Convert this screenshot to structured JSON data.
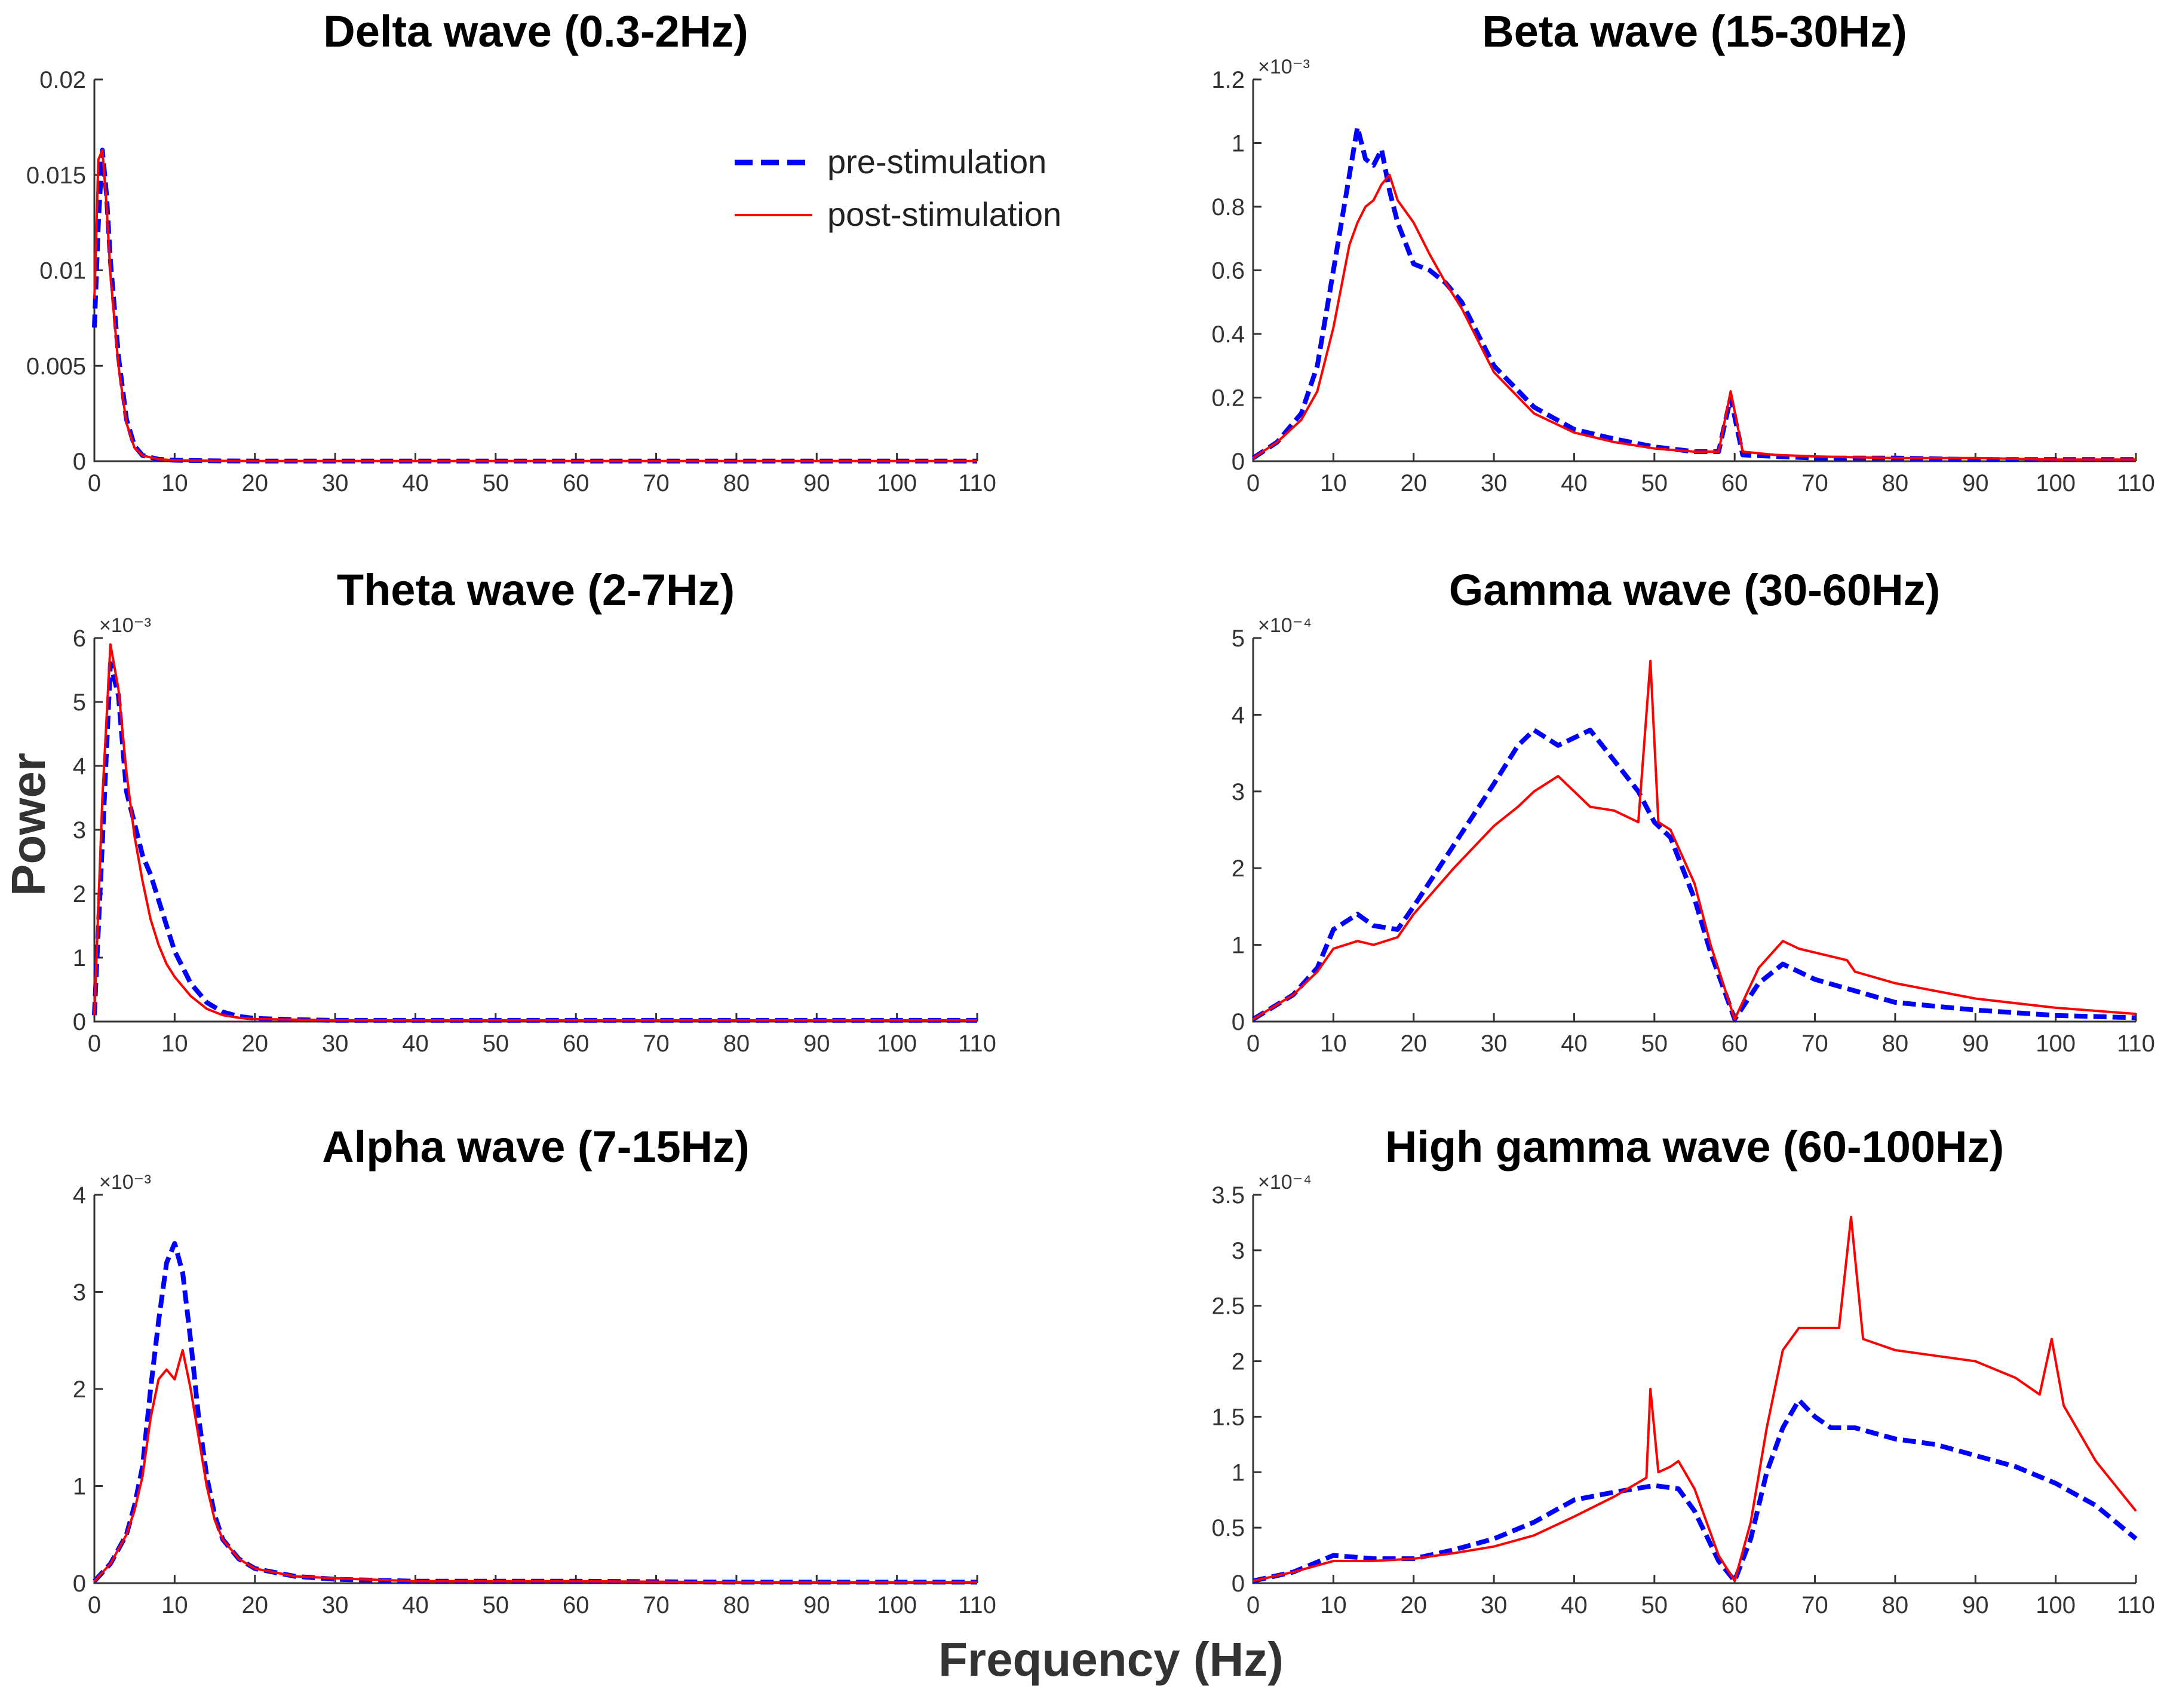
{
  "chart_data": {
    "type": "line",
    "xlabel": "Frequency (Hz)",
    "ylabel": "Power",
    "colors": {
      "pre": "#0000ff",
      "post": "#ff0000"
    },
    "legend": {
      "position": "top-right of first panel",
      "entries": [
        {
          "name": "pre-stimulation",
          "style": "dashed",
          "color": "#0000ff"
        },
        {
          "name": "post-stimulation",
          "style": "solid",
          "color": "#ff0000"
        }
      ]
    },
    "panels": [
      {
        "id": "delta",
        "title": "Delta wave (0.3-2Hz)",
        "xlim": [
          0,
          110
        ],
        "xticks": [
          "0",
          "10",
          "20",
          "30",
          "40",
          "50",
          "60",
          "70",
          "80",
          "90",
          "100",
          "110"
        ],
        "ylim": [
          0,
          0.02
        ],
        "yticks": [
          0,
          0.005,
          0.01,
          0.015,
          0.02
        ],
        "ytick_labels": [
          "0",
          "0.005",
          "0.01",
          "0.015",
          "0.02"
        ],
        "exponent_label": "",
        "series": [
          {
            "name": "pre-stimulation",
            "x": [
              0,
              0.5,
              1,
              1.5,
              2,
              3,
              4,
              5,
              6,
              8,
              10,
              15,
              20,
              40,
              60,
              80,
              100,
              110
            ],
            "values": [
              0.007,
              0.0125,
              0.0163,
              0.014,
              0.0105,
              0.0055,
              0.0022,
              0.0008,
              0.0003,
              0.0001,
              5e-05,
              2e-05,
              1e-05,
              1e-05,
              1e-05,
              1e-05,
              1e-05,
              1e-05
            ]
          },
          {
            "name": "post-stimulation",
            "x": [
              0,
              0.5,
              1,
              1.5,
              2,
              3,
              4,
              5,
              6,
              8,
              10,
              15,
              20,
              40,
              60,
              80,
              100,
              110
            ],
            "values": [
              0.0085,
              0.0158,
              0.0163,
              0.0135,
              0.0098,
              0.005,
              0.002,
              0.0007,
              0.0003,
              0.0001,
              5e-05,
              2e-05,
              1e-05,
              1e-05,
              1e-05,
              1e-05,
              1e-05,
              1e-05
            ]
          }
        ]
      },
      {
        "id": "theta",
        "title": "Theta wave (2-7Hz)",
        "xlim": [
          0,
          110
        ],
        "xticks": [
          "0",
          "10",
          "20",
          "30",
          "40",
          "50",
          "60",
          "70",
          "80",
          "90",
          "100",
          "110"
        ],
        "ylim": [
          0,
          6
        ],
        "yticks": [
          0,
          1,
          2,
          3,
          4,
          5,
          6
        ],
        "ytick_labels": [
          "0",
          "1",
          "2",
          "3",
          "4",
          "5",
          "6"
        ],
        "exponent_label": "×10⁻³",
        "series": [
          {
            "name": "pre-stimulation",
            "x": [
              0,
              1,
              2,
              3,
              4,
              5,
              6,
              7,
              8,
              9,
              10,
              12,
              14,
              16,
              18,
              20,
              25,
              30,
              40,
              60,
              80,
              100,
              110
            ],
            "values": [
              0.1,
              2.8,
              5.6,
              5.1,
              3.6,
              3.1,
              2.6,
              2.3,
              1.9,
              1.5,
              1.1,
              0.6,
              0.3,
              0.15,
              0.08,
              0.05,
              0.03,
              0.02,
              0.02,
              0.02,
              0.02,
              0.02,
              0.02
            ]
          },
          {
            "name": "post-stimulation",
            "x": [
              0,
              1,
              2,
              3,
              4,
              5,
              6,
              7,
              8,
              9,
              10,
              12,
              14,
              16,
              18,
              20,
              25,
              30,
              40,
              60,
              80,
              100,
              110
            ],
            "values": [
              0.1,
              3.5,
              5.9,
              5.2,
              3.9,
              2.9,
              2.2,
              1.6,
              1.2,
              0.9,
              0.7,
              0.4,
              0.2,
              0.1,
              0.06,
              0.04,
              0.03,
              0.02,
              0.02,
              0.02,
              0.02,
              0.02,
              0.02
            ]
          }
        ]
      },
      {
        "id": "alpha",
        "title": "Alpha wave (7-15Hz)",
        "xlim": [
          0,
          110
        ],
        "xticks": [
          "0",
          "10",
          "20",
          "30",
          "40",
          "50",
          "60",
          "70",
          "80",
          "90",
          "100",
          "110"
        ],
        "ylim": [
          0,
          4
        ],
        "yticks": [
          0,
          1,
          2,
          3,
          4
        ],
        "ytick_labels": [
          "0",
          "1",
          "2",
          "3",
          "4"
        ],
        "exponent_label": "×10⁻³",
        "series": [
          {
            "name": "pre-stimulation",
            "x": [
              0,
              2,
              4,
              5,
              6,
              7,
              8,
              9,
              10,
              11,
              12,
              13,
              14,
              15,
              16,
              18,
              20,
              25,
              30,
              40,
              60,
              80,
              100,
              110
            ],
            "values": [
              0.02,
              0.2,
              0.5,
              0.8,
              1.2,
              2.0,
              2.7,
              3.3,
              3.5,
              3.2,
              2.5,
              1.7,
              1.1,
              0.7,
              0.45,
              0.25,
              0.15,
              0.07,
              0.04,
              0.02,
              0.02,
              0.01,
              0.01,
              0.01
            ]
          },
          {
            "name": "post-stimulation",
            "x": [
              0,
              2,
              4,
              5,
              6,
              7,
              8,
              9,
              10,
              11,
              12,
              13,
              14,
              15,
              16,
              18,
              20,
              25,
              30,
              40,
              60,
              80,
              100,
              110
            ],
            "values": [
              0.02,
              0.2,
              0.5,
              0.75,
              1.1,
              1.7,
              2.1,
              2.2,
              2.1,
              2.4,
              2.0,
              1.5,
              1.0,
              0.65,
              0.45,
              0.25,
              0.15,
              0.07,
              0.05,
              0.02,
              0.02,
              0.01,
              0.01,
              0.01
            ]
          }
        ]
      },
      {
        "id": "beta",
        "title": "Beta wave (15-30Hz)",
        "xlim": [
          0,
          110
        ],
        "xticks": [
          "0",
          "10",
          "20",
          "30",
          "40",
          "50",
          "60",
          "70",
          "80",
          "90",
          "100",
          "110"
        ],
        "ylim": [
          0,
          1.2
        ],
        "yticks": [
          0,
          0.2,
          0.4,
          0.6,
          0.8,
          1.0,
          1.2
        ],
        "ytick_labels": [
          "0",
          "0.2",
          "0.4",
          "0.6",
          "0.8",
          "1",
          "1.2"
        ],
        "exponent_label": "×10⁻³",
        "series": [
          {
            "name": "pre-stimulation",
            "x": [
              0,
              3,
              6,
              8,
              10,
              11,
              12,
              13,
              14,
              15,
              16,
              17,
              18,
              20,
              22,
              24,
              26,
              28,
              30,
              35,
              40,
              45,
              50,
              55,
              58,
              59.5,
              61,
              65,
              70,
              80,
              90,
              100,
              110
            ],
            "values": [
              0.01,
              0.06,
              0.15,
              0.3,
              0.6,
              0.75,
              0.9,
              1.05,
              0.95,
              0.93,
              0.98,
              0.85,
              0.75,
              0.62,
              0.6,
              0.56,
              0.5,
              0.4,
              0.3,
              0.17,
              0.1,
              0.07,
              0.045,
              0.03,
              0.03,
              0.2,
              0.02,
              0.015,
              0.01,
              0.01,
              0.005,
              0.005,
              0.005
            ]
          },
          {
            "name": "post-stimulation",
            "x": [
              0,
              3,
              6,
              8,
              10,
              11,
              12,
              13,
              14,
              15,
              16,
              17,
              18,
              20,
              22,
              24,
              26,
              28,
              30,
              35,
              40,
              45,
              50,
              55,
              58,
              59.5,
              61,
              65,
              70,
              80,
              90,
              100,
              110
            ],
            "values": [
              0.01,
              0.06,
              0.13,
              0.22,
              0.42,
              0.55,
              0.68,
              0.75,
              0.8,
              0.82,
              0.87,
              0.9,
              0.82,
              0.75,
              0.65,
              0.56,
              0.48,
              0.38,
              0.28,
              0.15,
              0.09,
              0.06,
              0.04,
              0.03,
              0.03,
              0.22,
              0.03,
              0.02,
              0.015,
              0.01,
              0.01,
              0.005,
              0.005
            ]
          }
        ]
      },
      {
        "id": "gamma",
        "title": "Gamma wave (30-60Hz)",
        "xlim": [
          0,
          110
        ],
        "xticks": [
          "0",
          "10",
          "20",
          "30",
          "40",
          "50",
          "60",
          "70",
          "80",
          "90",
          "100",
          "110"
        ],
        "ylim": [
          0,
          5
        ],
        "yticks": [
          0,
          1,
          2,
          3,
          4,
          5
        ],
        "ytick_labels": [
          "0",
          "1",
          "2",
          "3",
          "4",
          "5"
        ],
        "exponent_label": "×10⁻⁴",
        "series": [
          {
            "name": "pre-stimulation",
            "x": [
              0,
              5,
              8,
              10,
              13,
              15,
              18,
              20,
              25,
              30,
              33,
              35,
              38,
              40,
              42,
              45,
              48,
              50,
              52,
              55,
              57,
              60,
              63,
              66,
              70,
              75,
              80,
              90,
              100,
              110
            ],
            "values": [
              0.03,
              0.35,
              0.7,
              1.2,
              1.4,
              1.25,
              1.2,
              1.5,
              2.3,
              3.1,
              3.6,
              3.8,
              3.6,
              3.7,
              3.8,
              3.4,
              3.0,
              2.6,
              2.4,
              1.6,
              0.9,
              0.03,
              0.5,
              0.75,
              0.55,
              0.4,
              0.25,
              0.15,
              0.08,
              0.05
            ]
          },
          {
            "name": "post-stimulation",
            "x": [
              0,
              5,
              8,
              10,
              13,
              15,
              18,
              20,
              25,
              30,
              33,
              35,
              38,
              40,
              42,
              45,
              48,
              49.5,
              50.5,
              52,
              55,
              57,
              60,
              63,
              66,
              68,
              70,
              74,
              75,
              80,
              90,
              100,
              110
            ],
            "values": [
              0.03,
              0.35,
              0.65,
              0.95,
              1.05,
              1.0,
              1.1,
              1.4,
              2.0,
              2.55,
              2.8,
              3.0,
              3.2,
              3.0,
              2.8,
              2.75,
              2.6,
              4.7,
              2.6,
              2.5,
              1.8,
              1.0,
              0.03,
              0.7,
              1.05,
              0.95,
              0.9,
              0.8,
              0.65,
              0.5,
              0.3,
              0.18,
              0.1
            ]
          }
        ]
      },
      {
        "id": "high_gamma",
        "title": "High gamma wave (60-100Hz)",
        "xlim": [
          0,
          110
        ],
        "xticks": [
          "0",
          "10",
          "20",
          "30",
          "40",
          "50",
          "60",
          "70",
          "80",
          "90",
          "100",
          "110"
        ],
        "ylim": [
          0,
          3.5
        ],
        "yticks": [
          0,
          0.5,
          1.0,
          1.5,
          2.0,
          2.5,
          3.0,
          3.5
        ],
        "ytick_labels": [
          "0",
          "0.5",
          "1",
          "1.5",
          "2",
          "2.5",
          "3",
          "3.5"
        ],
        "exponent_label": "×10⁻⁴",
        "series": [
          {
            "name": "pre-stimulation",
            "x": [
              0,
              5,
              10,
              15,
              20,
              25,
              30,
              35,
              40,
              45,
              50,
              53,
              55,
              57,
              58,
              60,
              62,
              64,
              66,
              68,
              70,
              72,
              75,
              80,
              85,
              90,
              95,
              100,
              105,
              110
            ],
            "values": [
              0.02,
              0.1,
              0.25,
              0.22,
              0.22,
              0.3,
              0.4,
              0.55,
              0.75,
              0.82,
              0.88,
              0.85,
              0.65,
              0.35,
              0.2,
              0.02,
              0.4,
              1.0,
              1.4,
              1.65,
              1.5,
              1.4,
              1.4,
              1.3,
              1.25,
              1.15,
              1.05,
              0.9,
              0.7,
              0.4
            ]
          },
          {
            "name": "post-stimulation",
            "x": [
              0,
              5,
              10,
              15,
              20,
              25,
              30,
              35,
              40,
              45,
              49,
              49.5,
              50.5,
              52,
              53,
              55,
              57,
              58,
              60,
              62,
              64,
              66,
              68,
              70,
              73,
              74.5,
              76,
              80,
              85,
              90,
              95,
              98,
              99.5,
              101,
              105,
              110
            ],
            "values": [
              0.02,
              0.1,
              0.2,
              0.2,
              0.22,
              0.27,
              0.33,
              0.43,
              0.6,
              0.78,
              0.95,
              1.75,
              1.0,
              1.05,
              1.1,
              0.85,
              0.45,
              0.25,
              0.02,
              0.55,
              1.4,
              2.1,
              2.3,
              2.3,
              2.3,
              3.3,
              2.2,
              2.1,
              2.05,
              2.0,
              1.85,
              1.7,
              2.2,
              1.6,
              1.1,
              0.65
            ]
          }
        ]
      }
    ]
  }
}
